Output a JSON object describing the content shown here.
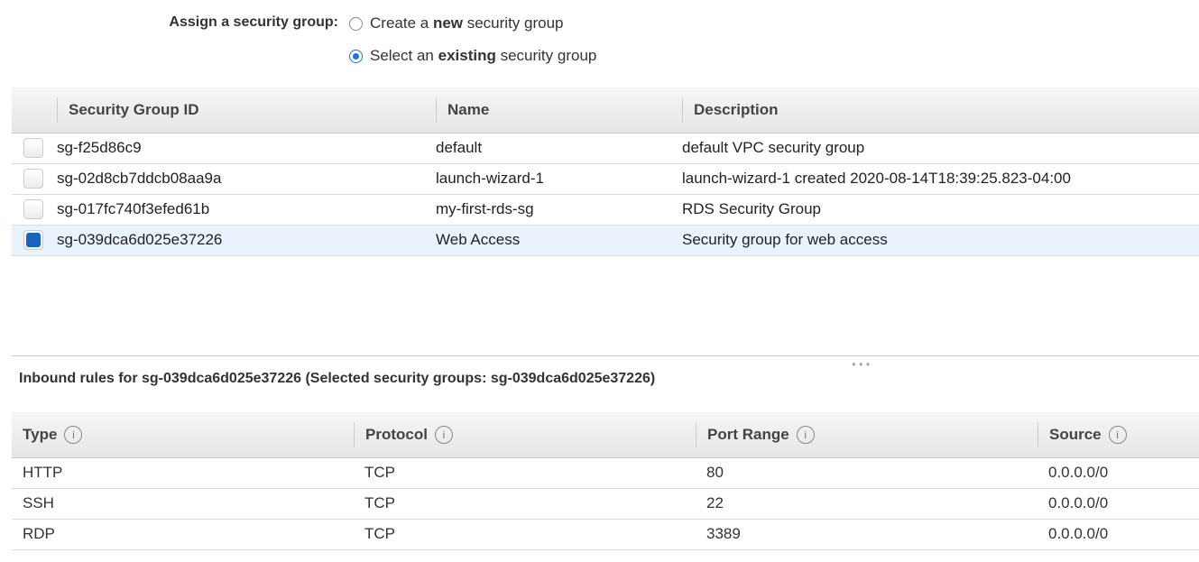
{
  "assign": {
    "label": "Assign a security group:",
    "options": [
      {
        "pre": "Create a ",
        "bold": "new",
        "post": " security group",
        "selected": false
      },
      {
        "pre": "Select an ",
        "bold": "existing",
        "post": " security group",
        "selected": true
      }
    ]
  },
  "groups": {
    "columns": [
      "Security Group ID",
      "Name",
      "Description"
    ],
    "rows": [
      {
        "id": "sg-f25d86c9",
        "name": "default",
        "description": "default VPC security group",
        "checked": false
      },
      {
        "id": "sg-02d8cb7ddcb08aa9a",
        "name": "launch-wizard-1",
        "description": "launch-wizard-1 created 2020-08-14T18:39:25.823-04:00",
        "checked": false
      },
      {
        "id": "sg-017fc740f3efed61b",
        "name": "my-first-rds-sg",
        "description": "RDS Security Group",
        "checked": false
      },
      {
        "id": "sg-039dca6d025e37226",
        "name": "Web Access",
        "description": "Security group for web access",
        "checked": true
      }
    ]
  },
  "inbound": {
    "title": "Inbound rules for sg-039dca6d025e37226 (Selected security groups: sg-039dca6d025e37226)",
    "columns": [
      "Type",
      "Protocol",
      "Port Range",
      "Source"
    ],
    "rows": [
      [
        "HTTP",
        "TCP",
        "80",
        "0.0.0.0/0"
      ],
      [
        "SSH",
        "TCP",
        "22",
        "0.0.0.0/0"
      ],
      [
        "RDP",
        "TCP",
        "3389",
        "0.0.0.0/0"
      ]
    ]
  },
  "colors": {
    "accent": "#1565c0",
    "selected_row": "#eaf2fd"
  }
}
